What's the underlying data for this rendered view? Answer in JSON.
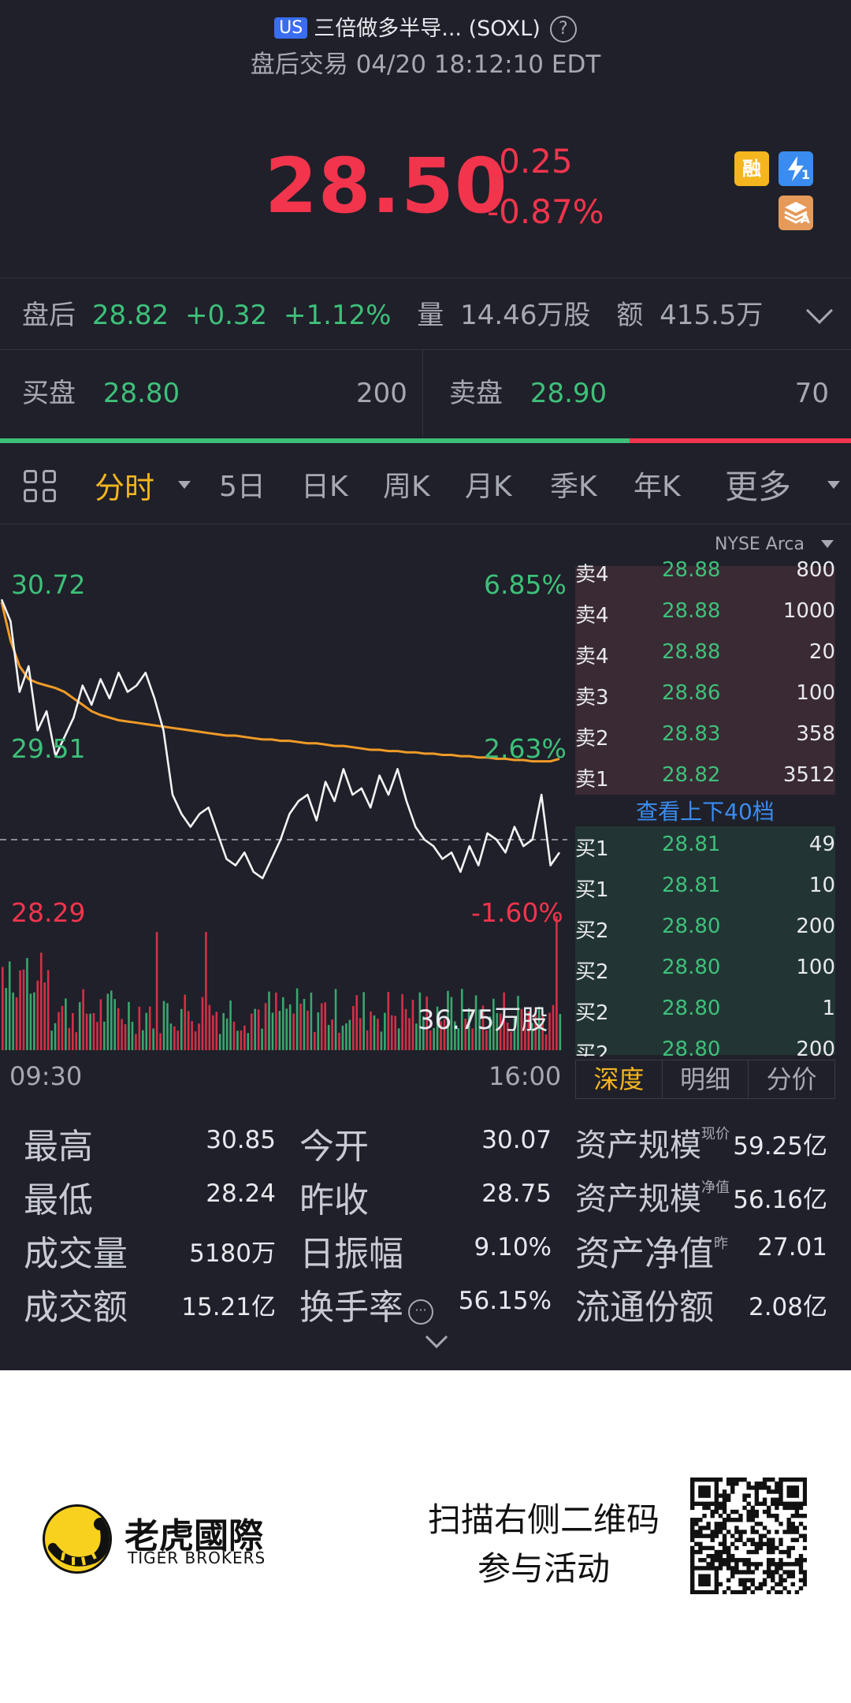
{
  "header": {
    "market_badge": "US",
    "title": "三倍做多半导... (SOXL)",
    "help_glyph": "?",
    "session_status": "盘后交易 04/20 18:12:10 EDT"
  },
  "quote": {
    "price": "28.50",
    "change": "-0.25",
    "change_pct": "-0.87%",
    "badges": {
      "margin": "融",
      "flash_sub": "1",
      "stack_sub": "A"
    }
  },
  "after_hours": {
    "label": "盘后",
    "price": "28.82",
    "change": "+0.32",
    "change_pct": "+1.12%",
    "volume_label": "量",
    "volume": "14.46万股",
    "amount_label": "额",
    "amount": "415.5万"
  },
  "bid_ask": {
    "bid_label": "买盘",
    "bid_price": "28.80",
    "bid_size": "200",
    "ask_label": "卖盘",
    "ask_price": "28.90",
    "ask_size": "70",
    "bid_ratio": 0.74
  },
  "tabs": [
    {
      "label": "分时",
      "active": true
    },
    {
      "label": "5日"
    },
    {
      "label": "日K"
    },
    {
      "label": "周K"
    },
    {
      "label": "月K"
    },
    {
      "label": "季K"
    },
    {
      "label": "年K"
    },
    {
      "label": "更多"
    }
  ],
  "exchange": "NYSE Arca",
  "chart": {
    "price_high": "30.72",
    "price_mid": "29.51",
    "price_low": "28.29",
    "pct_high": "6.85%",
    "pct_mid": "2.63%",
    "pct_low": "-1.60%",
    "volume_max": "36.75万股",
    "time_start": "09:30",
    "time_end": "16:00"
  },
  "chart_data": {
    "type": "line",
    "x_range": [
      "09:30",
      "16:00"
    ],
    "ylim": [
      28.29,
      30.72
    ],
    "reference_price": 28.75,
    "series": [],
    "price_values": [
      30.62,
      30.45,
      29.9,
      30.1,
      29.6,
      29.75,
      29.4,
      29.55,
      29.7,
      29.95,
      29.8,
      30.0,
      29.85,
      30.05,
      29.9,
      29.95,
      30.05,
      29.85,
      29.6,
      29.1,
      28.95,
      28.85,
      28.95,
      29.0,
      28.8,
      28.6,
      28.55,
      28.65,
      28.5,
      28.45,
      28.6,
      28.75,
      28.95,
      29.05,
      29.1,
      28.9,
      29.2,
      29.05,
      29.3,
      29.1,
      29.15,
      29.0,
      29.25,
      29.1,
      29.3,
      29.05,
      28.85,
      28.75,
      28.7,
      28.6,
      28.65,
      28.5,
      28.7,
      28.55,
      28.8,
      28.75,
      28.65,
      28.85,
      28.7,
      28.75,
      29.1,
      28.55,
      28.65
    ],
    "avg_values": [
      30.6,
      30.3,
      30.1,
      30.0,
      29.97,
      29.95,
      29.93,
      29.9,
      29.85,
      29.8,
      29.75,
      29.72,
      29.7,
      29.68,
      29.67,
      29.66,
      29.65,
      29.64,
      29.63,
      29.62,
      29.61,
      29.6,
      29.59,
      29.58,
      29.57,
      29.56,
      29.56,
      29.55,
      29.54,
      29.53,
      29.53,
      29.52,
      29.52,
      29.51,
      29.5,
      29.5,
      29.49,
      29.48,
      29.48,
      29.47,
      29.46,
      29.45,
      29.45,
      29.44,
      29.44,
      29.43,
      29.43,
      29.42,
      29.42,
      29.41,
      29.41,
      29.4,
      29.4,
      29.39,
      29.39,
      29.38,
      29.38,
      29.37,
      29.37,
      29.36,
      29.36,
      29.36,
      29.38
    ]
  },
  "order_book": {
    "asks": [
      {
        "side": "卖4",
        "price": "28.88",
        "qty": "800"
      },
      {
        "side": "卖4",
        "price": "28.88",
        "qty": "1000"
      },
      {
        "side": "卖4",
        "price": "28.88",
        "qty": "20"
      },
      {
        "side": "卖3",
        "price": "28.86",
        "qty": "100"
      },
      {
        "side": "卖2",
        "price": "28.83",
        "qty": "358"
      },
      {
        "side": "卖1",
        "price": "28.82",
        "qty": "3512"
      }
    ],
    "view_more": "查看上下40档",
    "bids": [
      {
        "side": "买1",
        "price": "28.81",
        "qty": "49"
      },
      {
        "side": "买1",
        "price": "28.81",
        "qty": "10"
      },
      {
        "side": "买2",
        "price": "28.80",
        "qty": "200"
      },
      {
        "side": "买2",
        "price": "28.80",
        "qty": "100"
      },
      {
        "side": "买2",
        "price": "28.80",
        "qty": "1"
      },
      {
        "side": "买2",
        "price": "28.80",
        "qty": "200"
      }
    ],
    "subtabs": [
      "深度",
      "明细",
      "分价"
    ]
  },
  "stats": {
    "high_label": "最高",
    "high": "30.85",
    "low_label": "最低",
    "low": "28.24",
    "volume_label": "成交量",
    "volume": "5180万",
    "turnover_label": "成交额",
    "turnover": "15.21亿",
    "open_label": "今开",
    "open": "30.07",
    "prev_close_label": "昨收",
    "prev_close": "28.75",
    "amplitude_label": "日振幅",
    "amplitude": "9.10%",
    "turnover_rate_label": "换手率",
    "turnover_rate": "56.15%",
    "aum_label": "资产规模",
    "aum_market_sup": "现价",
    "aum_market": "59.25亿",
    "aum_nav_sup": "净值",
    "aum_nav": "56.16亿",
    "nav_label": "资产净值",
    "nav_sup": "昨",
    "nav": "27.01",
    "float_label": "流通份额",
    "float": "2.08亿"
  },
  "footer": {
    "brand_cn": "老虎國際",
    "brand_en": "TIGER BROKERS",
    "promo_line1": "扫描右侧二维码",
    "promo_line2": "参与活动"
  }
}
